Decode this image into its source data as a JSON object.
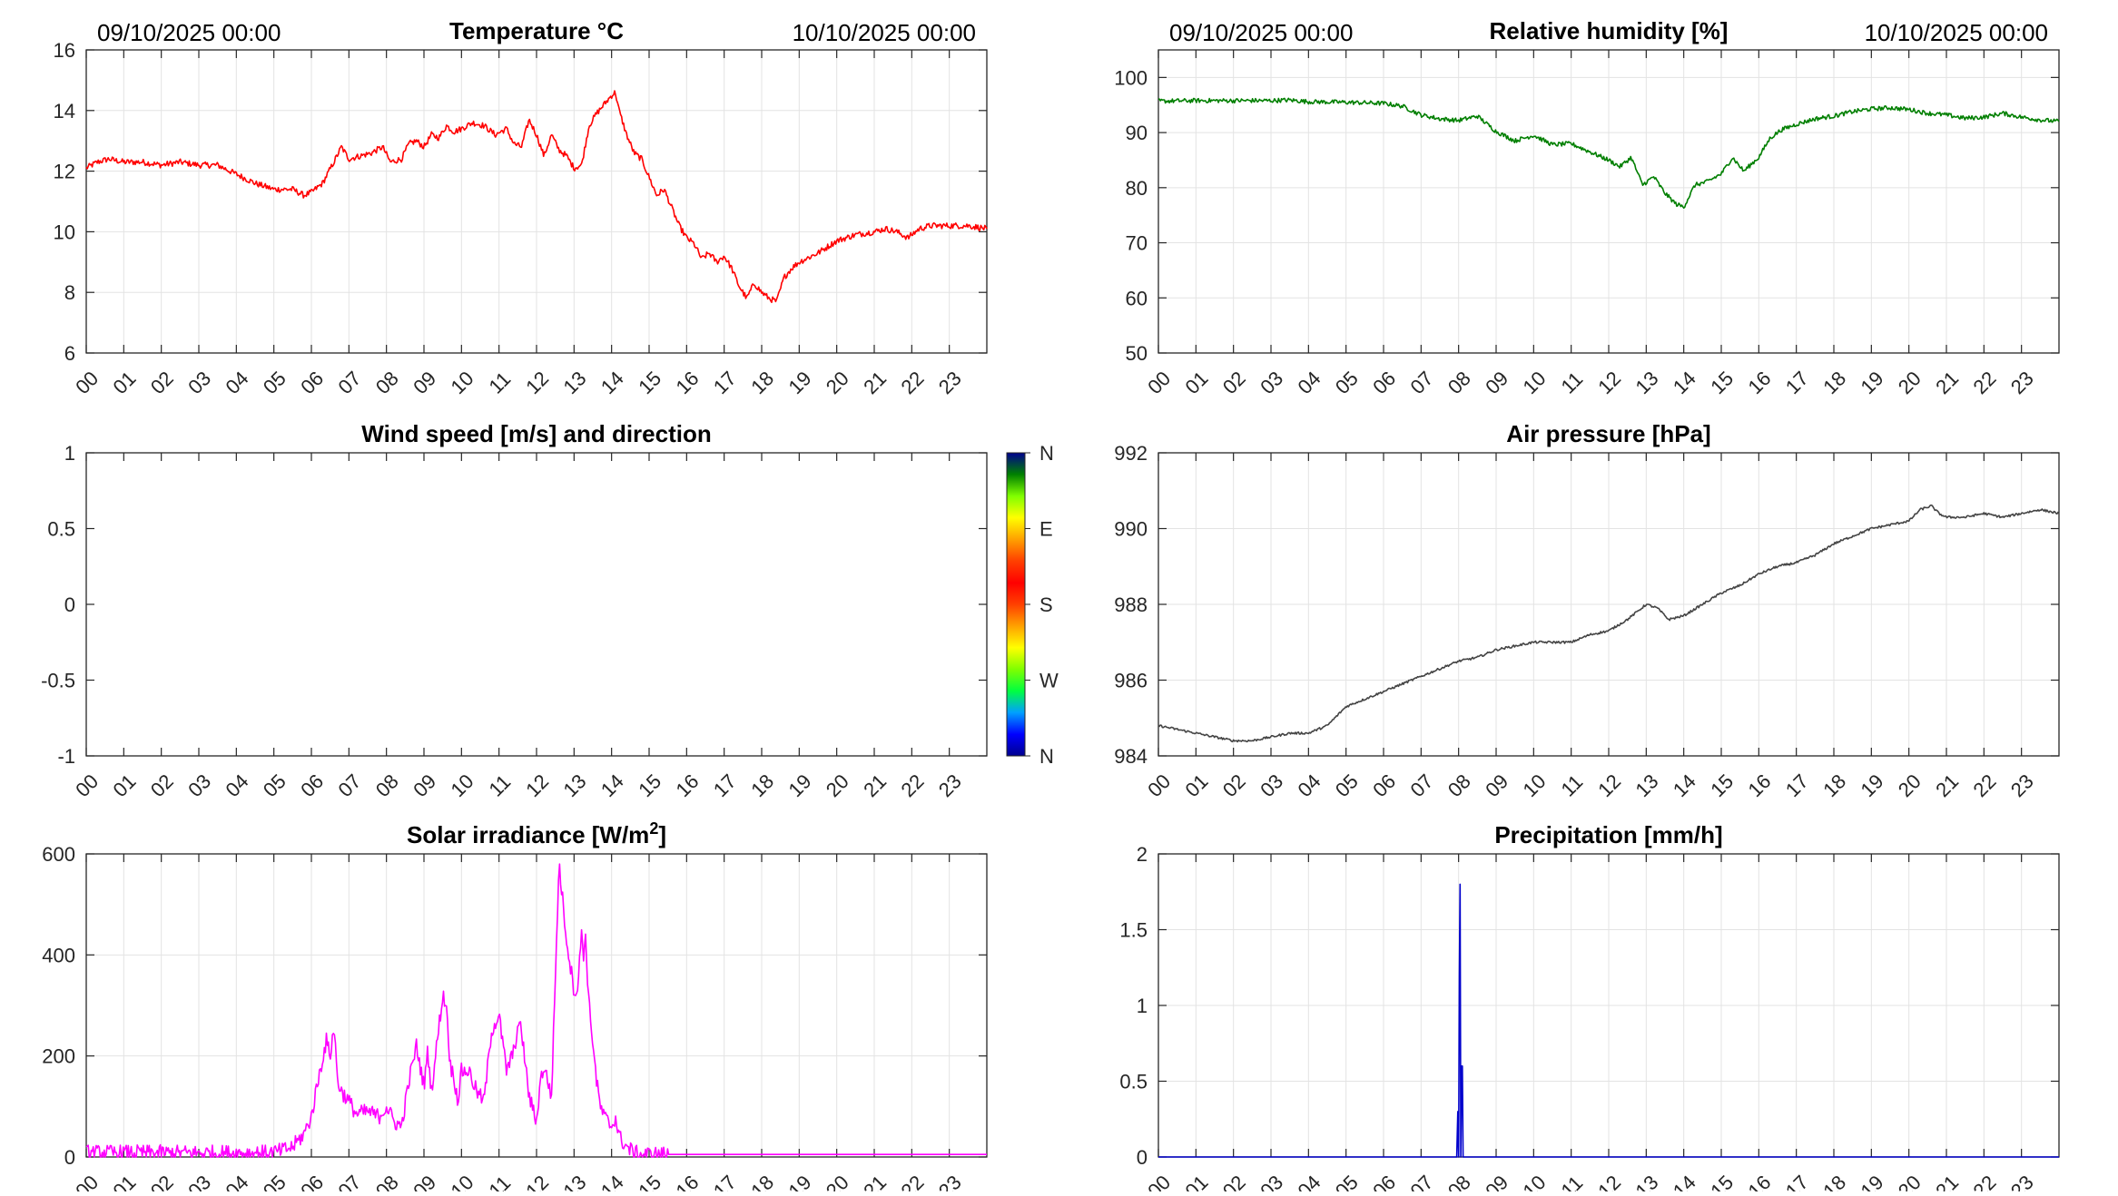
{
  "hour_labels": [
    "00",
    "01",
    "02",
    "03",
    "04",
    "05",
    "06",
    "07",
    "08",
    "09",
    "10",
    "11",
    "12",
    "13",
    "14",
    "15",
    "16",
    "17",
    "18",
    "19",
    "20",
    "21",
    "22",
    "23"
  ],
  "colors": {
    "temperature": "#ff0000",
    "humidity": "#007f00",
    "pressure": "#444444",
    "solar": "#ff00ff",
    "precipitation": "#0000cc",
    "grid": "#e3e3e3",
    "axis": "#262626"
  },
  "chart_data": [
    {
      "id": "temperature",
      "type": "line",
      "title": "Temperature °C",
      "header_left": "09/10/2025 00:00",
      "header_right": "10/10/2025 00:00",
      "x_unit": "hour",
      "xlim": [
        0,
        24
      ],
      "ylim": [
        6,
        16
      ],
      "yticks": [
        6,
        8,
        10,
        12,
        14,
        16
      ],
      "ytick_labels": [
        "6",
        "8",
        "10",
        "12",
        "14",
        "16"
      ],
      "grid": true,
      "series": [
        {
          "color": "#ff0000",
          "x": [
            0,
            0.3,
            0.6,
            1,
            1.5,
            2,
            2.5,
            3,
            3.5,
            4,
            4.5,
            5,
            5.5,
            5.8,
            6,
            6.3,
            6.6,
            6.8,
            7,
            7.3,
            7.6,
            7.9,
            8.1,
            8.4,
            8.6,
            8.8,
            9,
            9.2,
            9.4,
            9.6,
            9.8,
            10,
            10.3,
            10.6,
            10.9,
            11.2,
            11.4,
            11.6,
            11.8,
            12,
            12.2,
            12.4,
            12.6,
            12.8,
            13,
            13.2,
            13.4,
            13.6,
            13.8,
            14,
            14.1,
            14.2,
            14.4,
            14.6,
            14.8,
            15,
            15.2,
            15.4,
            15.6,
            15.8,
            16,
            16.2,
            16.4,
            16.6,
            16.8,
            17,
            17.2,
            17.4,
            17.6,
            17.8,
            18,
            18.2,
            18.4,
            18.6,
            18.8,
            19,
            19.5,
            20,
            20.5,
            21,
            21.3,
            21.6,
            21.9,
            22.2,
            22.5,
            23,
            23.5,
            24
          ],
          "y": [
            12.1,
            12.3,
            12.4,
            12.3,
            12.3,
            12.2,
            12.3,
            12.2,
            12.2,
            11.9,
            11.6,
            11.4,
            11.4,
            11.2,
            11.3,
            11.6,
            12.3,
            12.8,
            12.4,
            12.5,
            12.6,
            12.8,
            12.3,
            12.4,
            12.9,
            13.0,
            12.8,
            13.2,
            13.1,
            13.5,
            13.3,
            13.4,
            13.6,
            13.5,
            13.2,
            13.4,
            12.9,
            12.8,
            13.7,
            13.2,
            12.5,
            13.2,
            12.7,
            12.5,
            12.1,
            12.2,
            13.5,
            13.9,
            14.2,
            14.5,
            14.6,
            14.0,
            13.2,
            12.6,
            12.4,
            11.8,
            11.2,
            11.4,
            10.8,
            10.2,
            9.8,
            9.6,
            9.1,
            9.3,
            9.0,
            9.2,
            8.8,
            8.2,
            7.8,
            8.3,
            8.0,
            7.8,
            7.7,
            8.5,
            8.8,
            9.0,
            9.3,
            9.7,
            9.9,
            10.0,
            10.1,
            10.0,
            9.8,
            10.1,
            10.2,
            10.2,
            10.2,
            10.1
          ],
          "noise": 0.1
        }
      ]
    },
    {
      "id": "humidity",
      "type": "line",
      "title": "Relative humidity [%]",
      "header_left": "09/10/2025 00:00",
      "header_right": "10/10/2025 00:00",
      "x_unit": "hour",
      "xlim": [
        0,
        24
      ],
      "ylim": [
        50,
        105
      ],
      "yticks": [
        50,
        60,
        70,
        80,
        90,
        100
      ],
      "ytick_labels": [
        "50",
        "60",
        "70",
        "80",
        "90",
        "100"
      ],
      "grid": true,
      "series": [
        {
          "color": "#007f00",
          "x": [
            0,
            1,
            2,
            3,
            3.5,
            4,
            5,
            6,
            6.5,
            7,
            7.5,
            8,
            8.5,
            9,
            9.5,
            10,
            10.5,
            11,
            11.5,
            12,
            12.3,
            12.6,
            12.9,
            13.2,
            13.5,
            13.8,
            14,
            14.3,
            14.6,
            15,
            15.3,
            15.6,
            16,
            16.3,
            16.6,
            17,
            17.5,
            18,
            18.5,
            19,
            19.5,
            20,
            20.5,
            21,
            21.5,
            22,
            22.5,
            23,
            23.5,
            24
          ],
          "y": [
            95.7,
            95.8,
            95.8,
            95.8,
            95.9,
            95.6,
            95.5,
            95.3,
            94.8,
            93.2,
            92.5,
            92.2,
            93.0,
            90.2,
            88.5,
            89.5,
            87.8,
            88.0,
            86.5,
            85.0,
            83.8,
            85.5,
            80.5,
            82.0,
            79.0,
            77.0,
            76.5,
            80.5,
            81.0,
            82.5,
            85.5,
            83.0,
            85.5,
            89.0,
            90.5,
            91.5,
            92.5,
            93.0,
            93.8,
            94.3,
            94.5,
            94.2,
            93.5,
            93.2,
            92.6,
            92.8,
            93.5,
            92.8,
            92.3,
            92.0
          ],
          "noise": 0.4
        }
      ]
    },
    {
      "id": "wind",
      "type": "scatter",
      "title": "Wind speed [m/s] and direction",
      "x_unit": "hour",
      "xlim": [
        0,
        24
      ],
      "ylim": [
        -1,
        1
      ],
      "yticks": [
        -1,
        -0.5,
        0,
        0.5,
        1
      ],
      "ytick_labels": [
        "-1",
        "-0.5",
        "0",
        "0.5",
        "1"
      ],
      "grid": false,
      "series": [],
      "colorbar": {
        "labels": [
          "N",
          "W",
          "S",
          "E",
          "N"
        ],
        "colors": [
          "#00008f",
          "#0000ff",
          "#00a0ff",
          "#00ff40",
          "#80ff00",
          "#ffff00",
          "#ffa000",
          "#ff4000",
          "#ff0000",
          "#ff4000",
          "#ffa000",
          "#ffff00",
          "#80ff00",
          "#008000",
          "#00008f"
        ]
      }
    },
    {
      "id": "pressure",
      "type": "line",
      "title": "Air pressure [hPa]",
      "x_unit": "hour",
      "xlim": [
        0,
        24
      ],
      "ylim": [
        984,
        992
      ],
      "yticks": [
        984,
        986,
        988,
        990,
        992
      ],
      "ytick_labels": [
        "984",
        "986",
        "988",
        "990",
        "992"
      ],
      "grid": true,
      "series": [
        {
          "color": "#444444",
          "x": [
            0,
            0.5,
            1,
            1.5,
            2,
            2.5,
            3,
            3.5,
            4,
            4.5,
            5,
            5.5,
            6,
            6.5,
            7,
            7.5,
            8,
            8.5,
            9,
            9.5,
            10,
            10.5,
            11,
            11.5,
            12,
            12.5,
            13,
            13.3,
            13.6,
            14,
            14.5,
            15,
            15.5,
            16,
            16.5,
            17,
            17.5,
            18,
            18.5,
            19,
            19.5,
            20,
            20.3,
            20.6,
            20.8,
            21,
            21.5,
            22,
            22.5,
            23,
            23.5,
            24
          ],
          "y": [
            984.8,
            984.7,
            984.6,
            984.5,
            984.4,
            984.4,
            984.5,
            984.6,
            984.6,
            984.8,
            985.3,
            985.5,
            985.7,
            985.9,
            986.1,
            986.3,
            986.5,
            986.6,
            986.8,
            986.9,
            987.0,
            987.0,
            987.0,
            987.2,
            987.3,
            987.6,
            988.0,
            987.9,
            987.6,
            987.7,
            988.0,
            988.3,
            988.5,
            988.8,
            989.0,
            989.1,
            989.3,
            989.6,
            989.8,
            990.0,
            990.1,
            990.2,
            990.5,
            990.6,
            990.4,
            990.3,
            990.3,
            990.4,
            990.3,
            990.4,
            990.5,
            990.4
          ],
          "noise": 0.03
        }
      ]
    },
    {
      "id": "solar",
      "type": "line",
      "title": "Solar irradiance [W/m2]",
      "title_main": "Solar irradiance [W/m",
      "title_sup": "2",
      "title_end": "]",
      "x_unit": "hour",
      "xlim": [
        0,
        24
      ],
      "ylim": [
        0,
        600
      ],
      "yticks": [
        0,
        200,
        400,
        600
      ],
      "ytick_labels": [
        "0",
        "200",
        "400",
        "600"
      ],
      "grid": true,
      "series": [
        {
          "color": "#ff00ff",
          "x": [
            0,
            4.9,
            5.2,
            5.5,
            5.8,
            6,
            6.2,
            6.4,
            6.5,
            6.6,
            6.7,
            6.8,
            7,
            7.2,
            7.5,
            7.8,
            8,
            8.2,
            8.4,
            8.6,
            8.8,
            9,
            9.1,
            9.2,
            9.4,
            9.5,
            9.6,
            9.7,
            9.8,
            9.9,
            10,
            10.2,
            10.4,
            10.6,
            10.8,
            11,
            11.2,
            11.4,
            11.5,
            11.6,
            11.8,
            12,
            12.1,
            12.2,
            12.4,
            12.6,
            12.8,
            13,
            13.1,
            13.2,
            13.25,
            13.3,
            13.4,
            13.5,
            13.6,
            13.7,
            13.8,
            13.9,
            14,
            14.1,
            14.2,
            14.3,
            14.4,
            14.6,
            14.8,
            15,
            15.5,
            16,
            16.5,
            17,
            24
          ],
          "y": [
            8,
            8,
            12,
            20,
            45,
            80,
            160,
            230,
            200,
            260,
            150,
            130,
            110,
            85,
            90,
            80,
            100,
            70,
            60,
            150,
            220,
            140,
            210,
            130,
            260,
            320,
            300,
            180,
            160,
            110,
            170,
            170,
            130,
            110,
            250,
            280,
            170,
            210,
            260,
            250,
            120,
            70,
            150,
            180,
            120,
            580,
            430,
            330,
            330,
            450,
            400,
            440,
            300,
            230,
            150,
            100,
            80,
            70,
            60,
            80,
            40,
            30,
            20,
            8,
            5,
            5,
            5,
            5,
            5,
            5,
            5
          ],
          "noise": 16,
          "noise_until": 15.5
        }
      ]
    },
    {
      "id": "precipitation",
      "type": "line",
      "title": "Precipitation [mm/h]",
      "x_unit": "hour",
      "xlim": [
        0,
        24
      ],
      "ylim": [
        0,
        2
      ],
      "yticks": [
        0,
        0.5,
        1,
        1.5,
        2
      ],
      "ytick_labels": [
        "0",
        "0.5",
        "1",
        "1.5",
        "2"
      ],
      "grid": true,
      "series": [
        {
          "color": "#0000cc",
          "x": [
            0,
            7.95,
            7.98,
            8.0,
            8.02,
            8.04,
            8.06,
            8.08,
            8.1,
            8.12,
            8.14,
            8.16,
            8.18,
            24
          ],
          "y": [
            0,
            0,
            0.3,
            0,
            1.2,
            1.8,
            0,
            0.6,
            0.6,
            0,
            0,
            0,
            0,
            0
          ],
          "noise": 0
        }
      ]
    }
  ]
}
